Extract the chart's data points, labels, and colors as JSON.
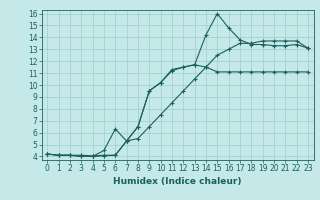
{
  "title": "",
  "xlabel": "Humidex (Indice chaleur)",
  "bg_color": "#c5e8e8",
  "line_color": "#1a6060",
  "grid_color": "#a0cccc",
  "xlim": [
    -0.5,
    23.5
  ],
  "ylim": [
    3.7,
    16.3
  ],
  "xticks": [
    0,
    1,
    2,
    3,
    4,
    5,
    6,
    7,
    8,
    9,
    10,
    11,
    12,
    13,
    14,
    15,
    16,
    17,
    18,
    19,
    20,
    21,
    22,
    23
  ],
  "yticks": [
    4,
    5,
    6,
    7,
    8,
    9,
    10,
    11,
    12,
    13,
    14,
    15,
    16
  ],
  "line1_x": [
    0,
    1,
    2,
    3,
    4,
    5,
    6,
    7,
    8,
    9,
    10,
    11,
    12,
    13,
    14,
    15,
    16,
    17,
    18,
    19,
    20,
    21,
    22,
    23
  ],
  "line1_y": [
    4.2,
    4.1,
    4.1,
    4.1,
    4.05,
    4.1,
    4.1,
    5.3,
    6.5,
    9.5,
    10.2,
    11.2,
    11.5,
    11.7,
    11.5,
    11.1,
    11.1,
    11.1,
    11.1,
    11.1,
    11.1,
    11.1,
    11.1,
    11.1
  ],
  "line2_x": [
    0,
    1,
    2,
    3,
    4,
    5,
    6,
    7,
    8,
    9,
    10,
    11,
    12,
    13,
    14,
    15,
    16,
    17,
    18,
    19,
    20,
    21,
    22,
    23
  ],
  "line2_y": [
    4.2,
    4.1,
    4.1,
    4.0,
    4.0,
    4.05,
    4.1,
    5.3,
    6.5,
    9.5,
    10.2,
    11.3,
    11.5,
    11.7,
    14.2,
    16.0,
    14.8,
    13.8,
    13.4,
    13.4,
    13.3,
    13.3,
    13.4,
    13.1
  ],
  "line3_x": [
    0,
    1,
    2,
    3,
    4,
    5,
    6,
    7,
    8,
    9,
    10,
    11,
    12,
    13,
    14,
    15,
    16,
    17,
    18,
    19,
    20,
    21,
    22,
    23
  ],
  "line3_y": [
    4.2,
    4.1,
    4.1,
    4.0,
    4.0,
    4.5,
    6.3,
    5.3,
    5.5,
    6.5,
    7.5,
    8.5,
    9.5,
    10.5,
    11.5,
    12.5,
    13.0,
    13.5,
    13.5,
    13.7,
    13.7,
    13.7,
    13.7,
    13.1
  ],
  "tick_fontsize": 5.5,
  "xlabel_fontsize": 6.5
}
